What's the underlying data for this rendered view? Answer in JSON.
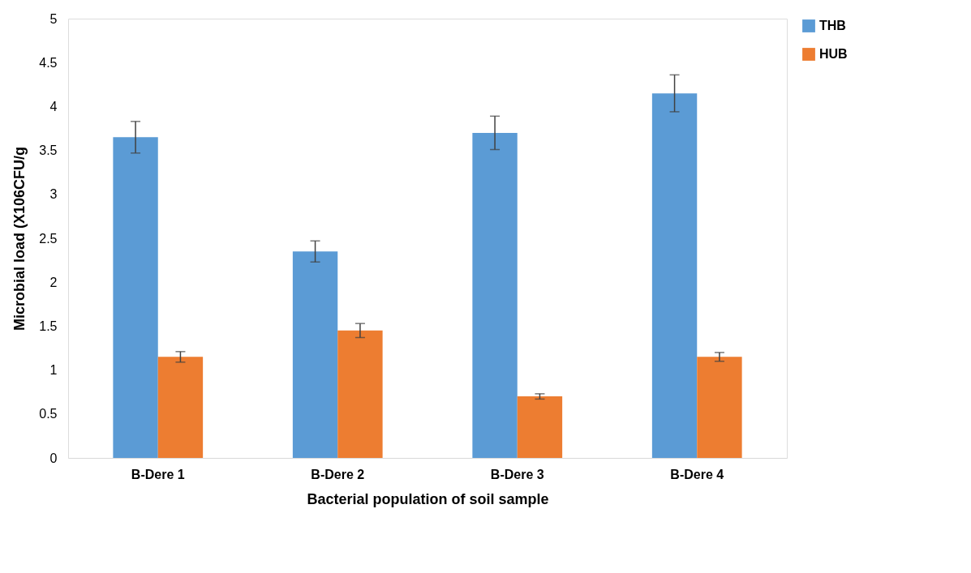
{
  "chart_data": {
    "type": "bar",
    "xlabel": "Bacterial population of soil sample",
    "ylabel": "Microbial load (X106CFU/g",
    "categories": [
      "B-Dere 1",
      "B-Dere 2",
      "B-Dere 3",
      "B-Dere 4"
    ],
    "series": [
      {
        "name": "THB",
        "color": "#5b9bd5",
        "values": [
          3.65,
          2.35,
          3.7,
          4.15
        ],
        "errors": [
          0.18,
          0.12,
          0.19,
          0.21
        ]
      },
      {
        "name": "HUB",
        "color": "#ed7d31",
        "values": [
          1.15,
          1.45,
          0.7,
          1.15
        ],
        "errors": [
          0.06,
          0.08,
          0.03,
          0.05
        ]
      }
    ],
    "ylim": [
      0,
      5
    ],
    "yticks": [
      0,
      0.5,
      1,
      1.5,
      2,
      2.5,
      3,
      3.5,
      4,
      4.5,
      5
    ],
    "grid": false,
    "legend": "right"
  }
}
